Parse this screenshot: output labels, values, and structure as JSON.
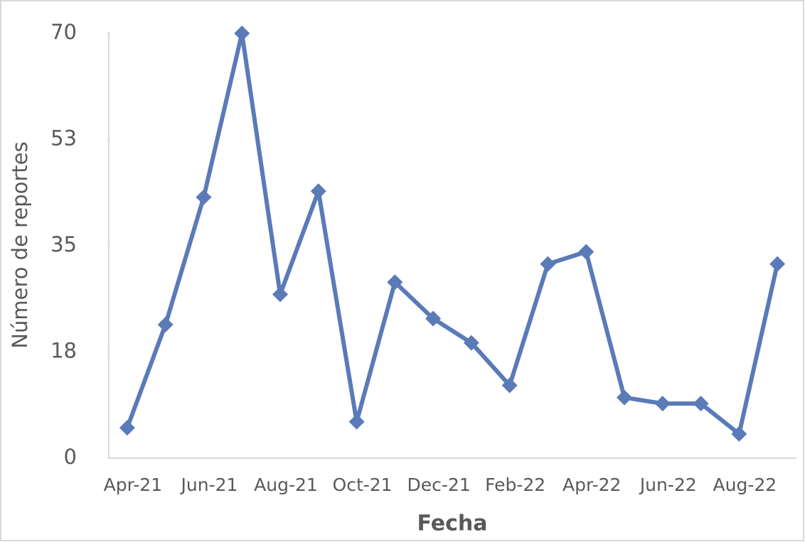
{
  "chart_data": {
    "type": "line",
    "x_label": "Fecha",
    "y_label": "Número de reportes",
    "categories": [
      "Apr-21",
      null,
      "Jun-21",
      null,
      "Aug-21",
      null,
      "Oct-21",
      null,
      "Dec-21",
      null,
      "Feb-22",
      null,
      "Apr-22",
      null,
      "Jun-22",
      null,
      "Aug-22",
      null
    ],
    "series": [
      {
        "color": "#5a7ab8",
        "values": [
          5,
          22,
          43,
          70,
          27,
          44,
          6,
          29,
          23,
          19,
          12,
          32,
          34,
          10,
          9,
          9,
          4,
          32
        ]
      }
    ],
    "ylim": [
      0,
      70
    ],
    "yticks": [
      0,
      {
        "value": 17.5,
        "label": "18"
      },
      35,
      {
        "value": 52.5,
        "label": "53"
      },
      70
    ],
    "grid": false
  }
}
